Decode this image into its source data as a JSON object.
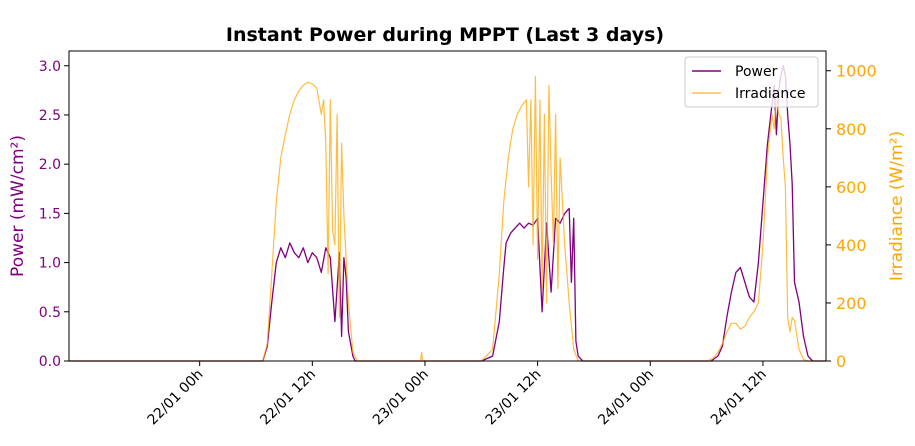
{
  "chart_data": {
    "type": "line",
    "title": "Instant Power during MPPT (Last 3 days)",
    "xlabel": "",
    "ylabel_left": "Power (mW/cm²)",
    "ylabel_right": "Irradiance (W/m²)",
    "ylim_left": [
      0,
      3.15
    ],
    "ylim_right": [
      0,
      1068
    ],
    "xlim": [
      -0.58,
      2.78
    ],
    "x_unit": "days from 22/01 00h",
    "x_ticks": [
      {
        "value": 0.0,
        "label": "22/01 00h"
      },
      {
        "value": 0.5,
        "label": "22/01 12h"
      },
      {
        "value": 1.0,
        "label": "23/01 00h"
      },
      {
        "value": 1.5,
        "label": "23/01 12h"
      },
      {
        "value": 2.0,
        "label": "24/01 00h"
      },
      {
        "value": 2.5,
        "label": "24/01 12h"
      }
    ],
    "y_ticks_left": [
      "0.0",
      "0.5",
      "1.0",
      "1.5",
      "2.0",
      "2.5",
      "3.0"
    ],
    "y_ticks_left_values": [
      0,
      0.5,
      1.0,
      1.5,
      2.0,
      2.5,
      3.0
    ],
    "y_ticks_right": [
      "0",
      "200",
      "400",
      "600",
      "800",
      "1000"
    ],
    "y_ticks_right_values": [
      0,
      200,
      400,
      600,
      800,
      1000
    ],
    "legend_position": "top-right",
    "grid": false,
    "series": [
      {
        "name": "Power",
        "axis": "left",
        "color": "#800080",
        "x": [
          -0.58,
          0.28,
          0.3,
          0.32,
          0.34,
          0.36,
          0.38,
          0.4,
          0.42,
          0.44,
          0.46,
          0.48,
          0.5,
          0.52,
          0.54,
          0.56,
          0.58,
          0.6,
          0.62,
          0.63,
          0.64,
          0.65,
          0.66,
          0.68,
          0.69,
          0.7,
          0.73,
          0.78,
          0.86,
          0.95,
          1.1,
          1.25,
          1.3,
          1.33,
          1.35,
          1.36,
          1.38,
          1.4,
          1.42,
          1.44,
          1.46,
          1.48,
          1.5,
          1.52,
          1.54,
          1.56,
          1.58,
          1.6,
          1.62,
          1.64,
          1.65,
          1.66,
          1.67,
          1.68,
          1.7,
          1.73,
          1.8,
          1.9,
          2.05,
          2.2,
          2.27,
          2.3,
          2.32,
          2.34,
          2.36,
          2.38,
          2.4,
          2.42,
          2.44,
          2.46,
          2.48,
          2.5,
          2.52,
          2.54,
          2.55,
          2.56,
          2.57,
          2.58,
          2.59,
          2.6,
          2.61,
          2.62,
          2.63,
          2.64,
          2.66,
          2.68,
          2.7,
          2.72,
          2.78
        ],
        "y": [
          0.0,
          0.0,
          0.15,
          0.6,
          1.0,
          1.15,
          1.05,
          1.2,
          1.1,
          1.05,
          1.15,
          1.0,
          1.1,
          1.05,
          0.9,
          1.15,
          1.05,
          0.4,
          1.1,
          0.25,
          1.05,
          0.85,
          0.3,
          0.05,
          0.0,
          0.0,
          0.0,
          0.0,
          0.0,
          0.0,
          0.0,
          0.0,
          0.05,
          0.4,
          0.95,
          1.2,
          1.3,
          1.35,
          1.4,
          1.35,
          1.4,
          1.38,
          1.45,
          0.5,
          1.4,
          0.7,
          1.45,
          1.4,
          1.5,
          1.55,
          0.8,
          1.45,
          0.2,
          0.05,
          0.0,
          0.0,
          0.0,
          0.0,
          0.0,
          0.0,
          0.0,
          0.05,
          0.15,
          0.45,
          0.7,
          0.9,
          0.95,
          0.8,
          0.65,
          0.6,
          1.0,
          1.6,
          2.2,
          2.6,
          2.8,
          2.3,
          2.75,
          2.9,
          3.0,
          2.9,
          2.5,
          2.2,
          1.8,
          0.8,
          0.6,
          0.25,
          0.05,
          0.0,
          0.0
        ]
      },
      {
        "name": "Irradiance",
        "axis": "right",
        "color": "#FFA500",
        "x": [
          -0.58,
          0.28,
          0.3,
          0.32,
          0.34,
          0.36,
          0.38,
          0.4,
          0.42,
          0.44,
          0.46,
          0.48,
          0.5,
          0.52,
          0.54,
          0.55,
          0.56,
          0.57,
          0.58,
          0.59,
          0.6,
          0.61,
          0.62,
          0.63,
          0.64,
          0.66,
          0.68,
          0.7,
          0.75,
          0.85,
          0.98,
          0.985,
          0.99,
          1.1,
          1.25,
          1.3,
          1.33,
          1.35,
          1.37,
          1.39,
          1.41,
          1.43,
          1.45,
          1.46,
          1.47,
          1.48,
          1.49,
          1.5,
          1.51,
          1.52,
          1.53,
          1.54,
          1.55,
          1.56,
          1.57,
          1.58,
          1.59,
          1.6,
          1.62,
          1.64,
          1.66,
          1.68,
          1.7,
          1.8,
          1.95,
          2.1,
          2.25,
          2.28,
          2.3,
          2.32,
          2.34,
          2.36,
          2.38,
          2.4,
          2.42,
          2.44,
          2.46,
          2.48,
          2.5,
          2.52,
          2.54,
          2.55,
          2.56,
          2.57,
          2.58,
          2.59,
          2.6,
          2.61,
          2.62,
          2.63,
          2.64,
          2.66,
          2.68,
          2.7,
          2.78
        ],
        "y": [
          0,
          0,
          60,
          300,
          550,
          700,
          780,
          850,
          900,
          930,
          950,
          960,
          955,
          940,
          850,
          900,
          750,
          300,
          900,
          450,
          400,
          850,
          150,
          750,
          500,
          200,
          30,
          0,
          0,
          0,
          0,
          30,
          0,
          0,
          0,
          40,
          300,
          550,
          700,
          800,
          850,
          880,
          900,
          600,
          900,
          400,
          980,
          350,
          900,
          250,
          850,
          200,
          950,
          650,
          400,
          850,
          250,
          700,
          400,
          200,
          40,
          0,
          0,
          0,
          0,
          0,
          0,
          10,
          30,
          60,
          100,
          130,
          130,
          110,
          120,
          150,
          170,
          200,
          400,
          700,
          850,
          800,
          900,
          850,
          840,
          700,
          600,
          150,
          100,
          150,
          140,
          40,
          5,
          0,
          0
        ]
      }
    ]
  }
}
